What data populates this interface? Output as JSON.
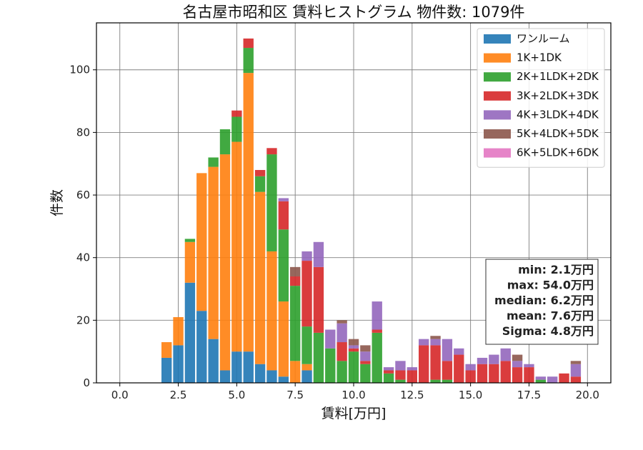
{
  "chart_data": {
    "type": "bar",
    "stacked": true,
    "title": "名古屋市昭和区 賃料ヒストグラム 物件数: 1079件",
    "xlabel": "賃料[万円]",
    "ylabel": "件数",
    "xlim": [
      -1,
      21
    ],
    "ylim": [
      0,
      115
    ],
    "xticks": [
      "0.0",
      "2.5",
      "5.0",
      "7.5",
      "10.0",
      "12.5",
      "15.0",
      "17.5",
      "20.0"
    ],
    "yticks": [
      "0",
      "20",
      "40",
      "60",
      "80",
      "100"
    ],
    "grid": true,
    "legend_position": "top-right",
    "bin_width": 0.5,
    "bins": [
      2.0,
      2.5,
      3.0,
      3.5,
      4.0,
      4.5,
      5.0,
      5.5,
      6.0,
      6.5,
      7.0,
      7.5,
      8.0,
      8.5,
      9.0,
      9.5,
      10.0,
      10.5,
      11.0,
      11.5,
      12.0,
      12.5,
      13.0,
      13.5,
      14.0,
      14.5,
      15.0,
      15.5,
      16.0,
      16.5,
      17.0,
      17.5,
      18.0,
      18.5,
      19.0,
      19.5
    ],
    "series": [
      {
        "name": "ワンルーム",
        "color": "#1f77b4",
        "values": [
          8,
          12,
          32,
          23,
          14,
          4,
          10,
          10,
          6,
          4,
          2,
          0,
          4,
          0,
          0,
          0,
          0,
          0,
          0,
          0,
          0,
          0,
          0,
          0,
          0,
          0,
          0,
          0,
          0,
          0,
          0,
          0,
          0,
          0,
          0,
          0
        ]
      },
      {
        "name": "1K+1DK",
        "color": "#ff7f0e",
        "values": [
          5,
          9,
          13,
          44,
          55,
          69,
          67,
          89,
          55,
          38,
          24,
          7,
          2,
          0,
          0,
          0,
          0,
          0,
          0,
          0,
          0,
          0,
          0,
          0,
          0,
          0,
          0,
          0,
          0,
          0,
          0,
          0,
          0,
          0,
          0,
          0
        ]
      },
      {
        "name": "2K+1LDK+2DK",
        "color": "#2ca02c",
        "values": [
          0,
          0,
          1,
          0,
          3,
          8,
          8,
          8,
          5,
          31,
          23,
          24,
          12,
          16,
          11,
          7,
          10,
          6,
          16,
          3,
          1,
          0,
          0,
          1,
          1,
          0,
          0,
          0,
          0,
          0,
          0,
          0,
          1,
          0,
          0,
          0
        ]
      },
      {
        "name": "3K+2LDK+3DK",
        "color": "#d62728",
        "values": [
          0,
          0,
          0,
          0,
          0,
          0,
          2,
          3,
          2,
          2,
          9,
          3,
          21,
          21,
          0,
          6,
          1,
          1,
          1,
          1,
          3,
          4,
          12,
          11,
          6,
          9,
          4,
          6,
          6,
          7,
          5,
          5,
          0,
          0,
          3,
          2
        ]
      },
      {
        "name": "4K+3LDK+4DK",
        "color": "#9467bd",
        "values": [
          0,
          0,
          0,
          0,
          0,
          0,
          0,
          0,
          0,
          0,
          1,
          0,
          3,
          8,
          6,
          6,
          1,
          3,
          9,
          1,
          3,
          1,
          2,
          2,
          7,
          2,
          2,
          2,
          3,
          4,
          2,
          1,
          1,
          2,
          0,
          4
        ]
      },
      {
        "name": "5K+4LDK+5DK",
        "color": "#8c564b",
        "values": [
          0,
          0,
          0,
          0,
          0,
          0,
          0,
          0,
          0,
          0,
          0,
          3,
          0,
          0,
          0,
          1,
          2,
          2,
          0,
          0,
          0,
          0,
          0,
          1,
          0,
          0,
          0,
          0,
          0,
          0,
          2,
          0,
          0,
          0,
          0,
          1
        ]
      },
      {
        "name": "6K+5LDK+6DK",
        "color": "#e377c2",
        "values": [
          0,
          0,
          0,
          0,
          0,
          0,
          0,
          0,
          0,
          0,
          0,
          0,
          0,
          0,
          0,
          0,
          0,
          0,
          0,
          0,
          0,
          0,
          0,
          0,
          0,
          0,
          0,
          0,
          0,
          0,
          0,
          0,
          0,
          0,
          0,
          0
        ]
      }
    ],
    "stats": [
      "min: 2.1万円",
      "max: 54.0万円",
      "median: 6.2万円",
      "mean: 7.6万円",
      "Sigma: 4.8万円"
    ]
  }
}
